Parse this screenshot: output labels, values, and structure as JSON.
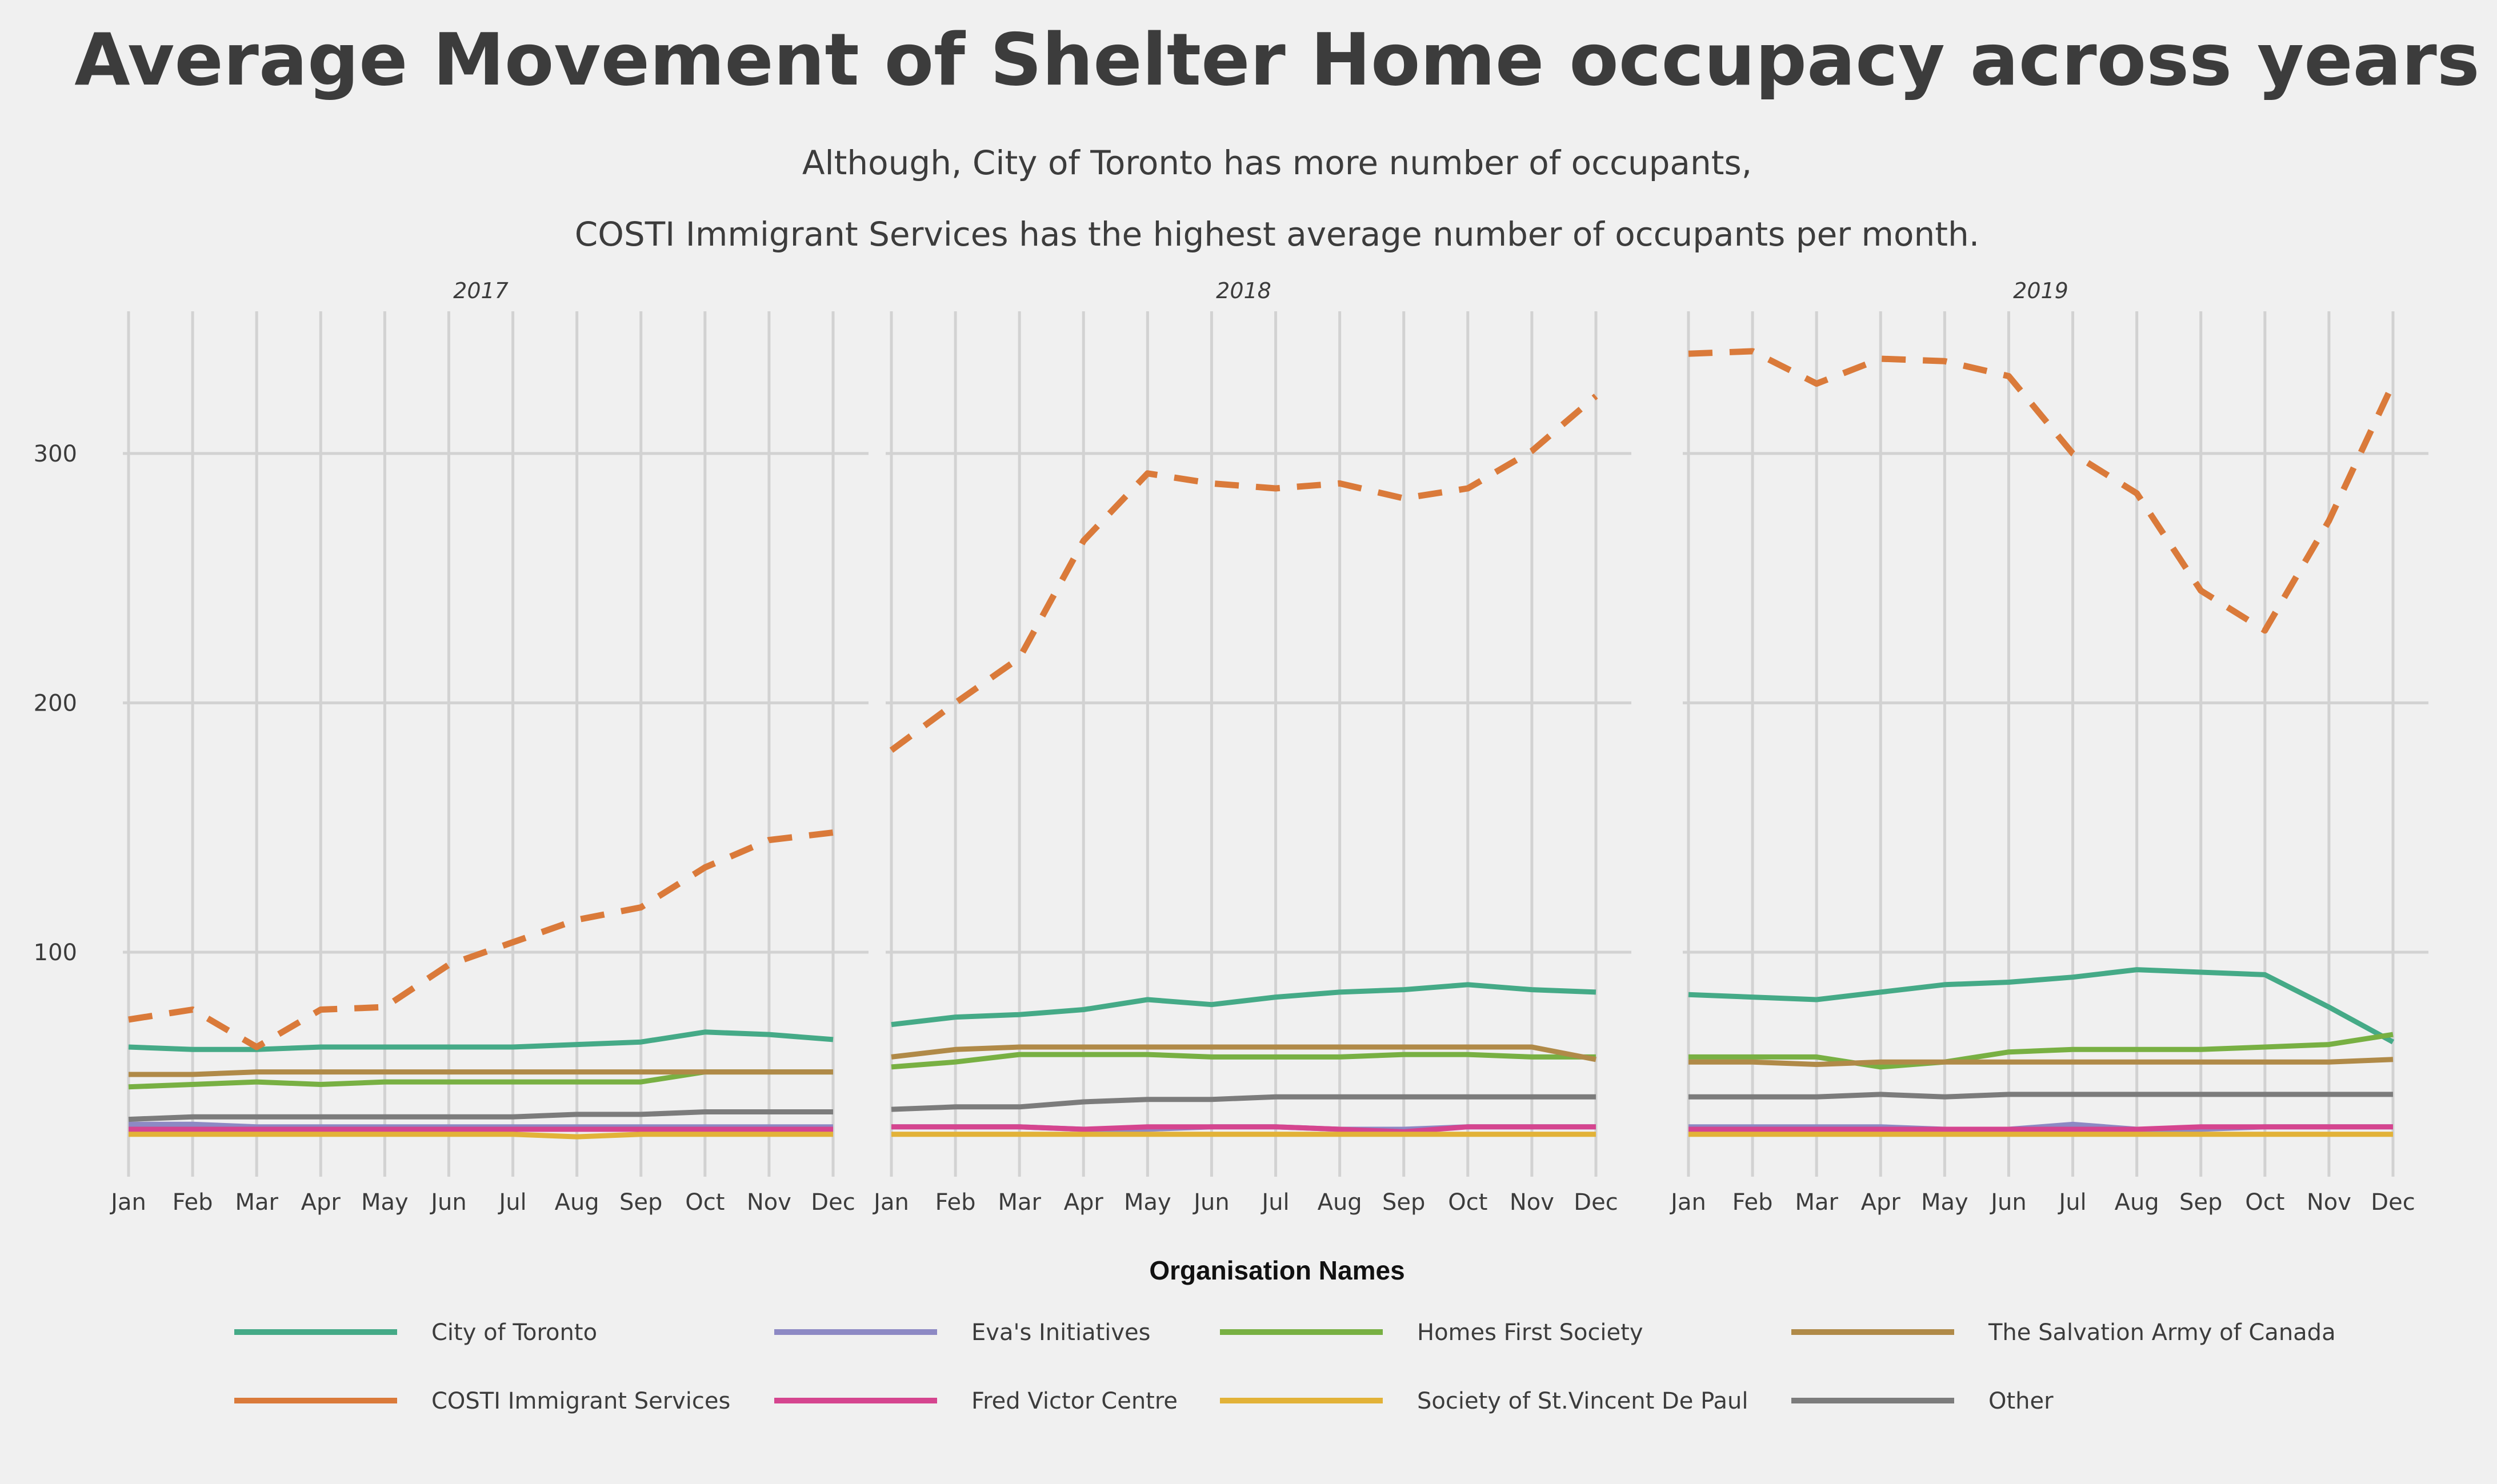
{
  "title": "Average Movement of Shelter Home occupacy across years",
  "subtitle_lines": [
    "Although, City of Toronto has more number of occupants,",
    "COSTI Immigrant Services has the highest average number of occupants per month."
  ],
  "legend_title": "Organisation Names",
  "colors": {
    "background": "#f0f0f0",
    "grid": "#d2d2d2",
    "text": "#3c3c3c"
  },
  "chart_data": {
    "type": "line",
    "facets": [
      "2017",
      "2018",
      "2019"
    ],
    "categories": [
      "Jan",
      "Feb",
      "Mar",
      "Apr",
      "May",
      "Jun",
      "Jul",
      "Aug",
      "Sep",
      "Oct",
      "Nov",
      "Dec"
    ],
    "ylim": [
      10,
      357
    ],
    "yticks": [
      100,
      200,
      300
    ],
    "xlabel": "",
    "ylabel": "",
    "grid": true,
    "legend_position": "bottom",
    "series": [
      {
        "name": "City of Toronto",
        "color": "#45aa87",
        "dashed": false,
        "values": {
          "2017": [
            62,
            61,
            61,
            62,
            62,
            62,
            62,
            63,
            64,
            68,
            67,
            65
          ],
          "2018": [
            71,
            74,
            75,
            77,
            81,
            79,
            82,
            84,
            85,
            87,
            85,
            84
          ],
          "2019": [
            83,
            82,
            81,
            84,
            87,
            88,
            90,
            93,
            92,
            91,
            78,
            64
          ]
        }
      },
      {
        "name": "Eva's Initiatives",
        "color": "#8d89c4",
        "dashed": false,
        "values": {
          "2017": [
            31,
            31,
            30,
            30,
            30,
            30,
            30,
            30,
            30,
            30,
            30,
            30
          ],
          "2018": [
            30,
            30,
            30,
            29,
            29,
            30,
            30,
            29,
            29,
            30,
            30,
            30
          ],
          "2019": [
            30,
            30,
            30,
            30,
            29,
            29,
            31,
            29,
            29,
            30,
            30,
            30
          ]
        }
      },
      {
        "name": "Homes First Society",
        "color": "#78b043",
        "dashed": false,
        "values": {
          "2017": [
            46,
            47,
            48,
            47,
            48,
            48,
            48,
            48,
            48,
            52,
            52,
            52
          ],
          "2018": [
            54,
            56,
            59,
            59,
            59,
            58,
            58,
            58,
            59,
            59,
            58,
            58
          ],
          "2019": [
            58,
            58,
            58,
            54,
            56,
            60,
            61,
            61,
            61,
            62,
            63,
            67
          ]
        }
      },
      {
        "name": "The Salvation Army of Canada",
        "color": "#b08a48",
        "dashed": false,
        "values": {
          "2017": [
            51,
            51,
            52,
            52,
            52,
            52,
            52,
            52,
            52,
            52,
            52,
            52
          ],
          "2018": [
            58,
            61,
            62,
            62,
            62,
            62,
            62,
            62,
            62,
            62,
            62,
            57
          ],
          "2019": [
            56,
            56,
            55,
            56,
            56,
            56,
            56,
            56,
            56,
            56,
            56,
            57
          ]
        }
      },
      {
        "name": "COSTI Immigrant Services",
        "color": "#da7a3a",
        "dashed": true,
        "values": {
          "2017": [
            73,
            77,
            62,
            77,
            78,
            95,
            104,
            113,
            118,
            134,
            145,
            148
          ],
          "2018": [
            181,
            200,
            218,
            265,
            292,
            288,
            286,
            288,
            282,
            286,
            301,
            323
          ],
          "2019": [
            340,
            341,
            328,
            338,
            337,
            331,
            300,
            284,
            245,
            229,
            273,
            328
          ]
        }
      },
      {
        "name": "Fred Victor Centre",
        "color": "#d5458f",
        "dashed": false,
        "values": {
          "2017": [
            29,
            29,
            29,
            29,
            29,
            29,
            29,
            29,
            29,
            29,
            29,
            29
          ],
          "2018": [
            30,
            30,
            30,
            29,
            30,
            30,
            30,
            29,
            28,
            30,
            30,
            30
          ],
          "2019": [
            29,
            29,
            29,
            29,
            29,
            29,
            29,
            29,
            30,
            30,
            30,
            30
          ]
        }
      },
      {
        "name": "Society of St.Vincent De Paul",
        "color": "#e2b238",
        "dashed": false,
        "values": {
          "2017": [
            27,
            27,
            27,
            27,
            27,
            27,
            27,
            26,
            27,
            27,
            27,
            27
          ],
          "2018": [
            27,
            27,
            27,
            27,
            27,
            27,
            27,
            27,
            27,
            27,
            27,
            27
          ],
          "2019": [
            27,
            27,
            27,
            27,
            27,
            27,
            27,
            27,
            27,
            27,
            27,
            27
          ]
        }
      },
      {
        "name": "Other",
        "color": "#7c7c7c",
        "dashed": false,
        "values": {
          "2017": [
            33,
            34,
            34,
            34,
            34,
            34,
            34,
            35,
            35,
            36,
            36,
            36
          ],
          "2018": [
            37,
            38,
            38,
            40,
            41,
            41,
            42,
            42,
            42,
            42,
            42,
            42
          ],
          "2019": [
            42,
            42,
            42,
            43,
            42,
            43,
            43,
            43,
            43,
            43,
            43,
            43
          ]
        }
      }
    ]
  }
}
